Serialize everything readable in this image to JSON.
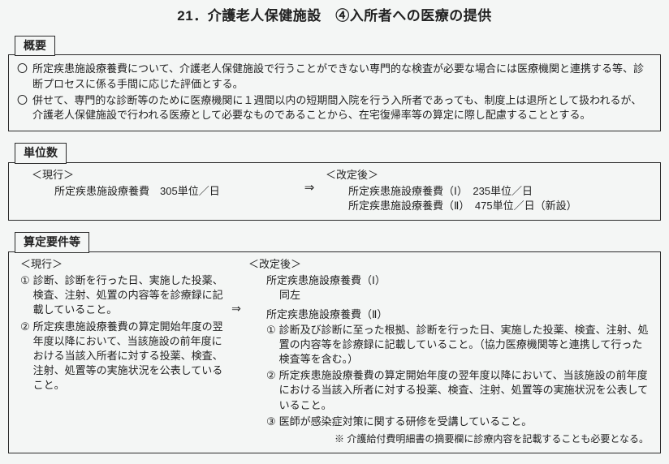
{
  "title": "21．介護老人保健施設　④入所者への医療の提供",
  "sections": {
    "overview": {
      "label": "概要",
      "items": [
        "所定疾患施設療養費について、介護老人保健施設で行うことができない専門的な検査が必要な場合には医療機関と連携する等、診断プロセスに係る手間に応じた評価とする。",
        "併せて、専門的な診断等のために医療機関に１週間以内の短期間入院を行う入所者であっても、制度上は退所として扱われるが、介護老人保健施設で行われる医療として必要なものであることから、在宅復帰率等の算定に際し配慮することとする。"
      ]
    },
    "units": {
      "label": "単位数",
      "current_header": "＜現行＞",
      "revised_header": "＜改定後＞",
      "arrow": "⇒",
      "current_line": "所定疾患施設療養費　305単位／日",
      "revised_line1": "所定疾患施設療養費（Ⅰ）　235単位／日",
      "revised_line2": "所定疾患施設療養費（Ⅱ）　475単位／日（新設）"
    },
    "requirements": {
      "label": "算定要件等",
      "current_header": "＜現行＞",
      "revised_header": "＜改定後＞",
      "arrow": "⇒",
      "current_items": [
        "診断、診断を行った日、実施した投薬、検査、注射、処置の内容等を診療録に記載していること。",
        "所定疾患施設療養費の算定開始年度の翌年度以降において、当該施設の前年度における当該入所者に対する投薬、検査、注射、処置等の実施状況を公表していること。"
      ],
      "revised_title1": "所定疾患施設療養費（Ⅰ）",
      "revised_same": "同左",
      "revised_title2": "所定疾患施設療養費（Ⅱ）",
      "revised_items2": [
        "診断及び診断に至った根拠、診断を行った日、実施した投薬、検査、注射、処置の内容等を診療録に記載していること。（協力医療機関等と連携して行った検査等を含む。）",
        "所定疾患施設療養費の算定開始年度の翌年度以降において、当該施設の前年度における当該入所者に対する投薬、検査、注射、処置等の実施状況を公表していること。",
        "医師が感染症対策に関する研修を受講していること。"
      ],
      "note": "※ 介護給付費明細書の摘要欄に診療内容を記載することも必要となる。"
    }
  },
  "circles": [
    "①",
    "②",
    "③"
  ],
  "bullet": "〇"
}
